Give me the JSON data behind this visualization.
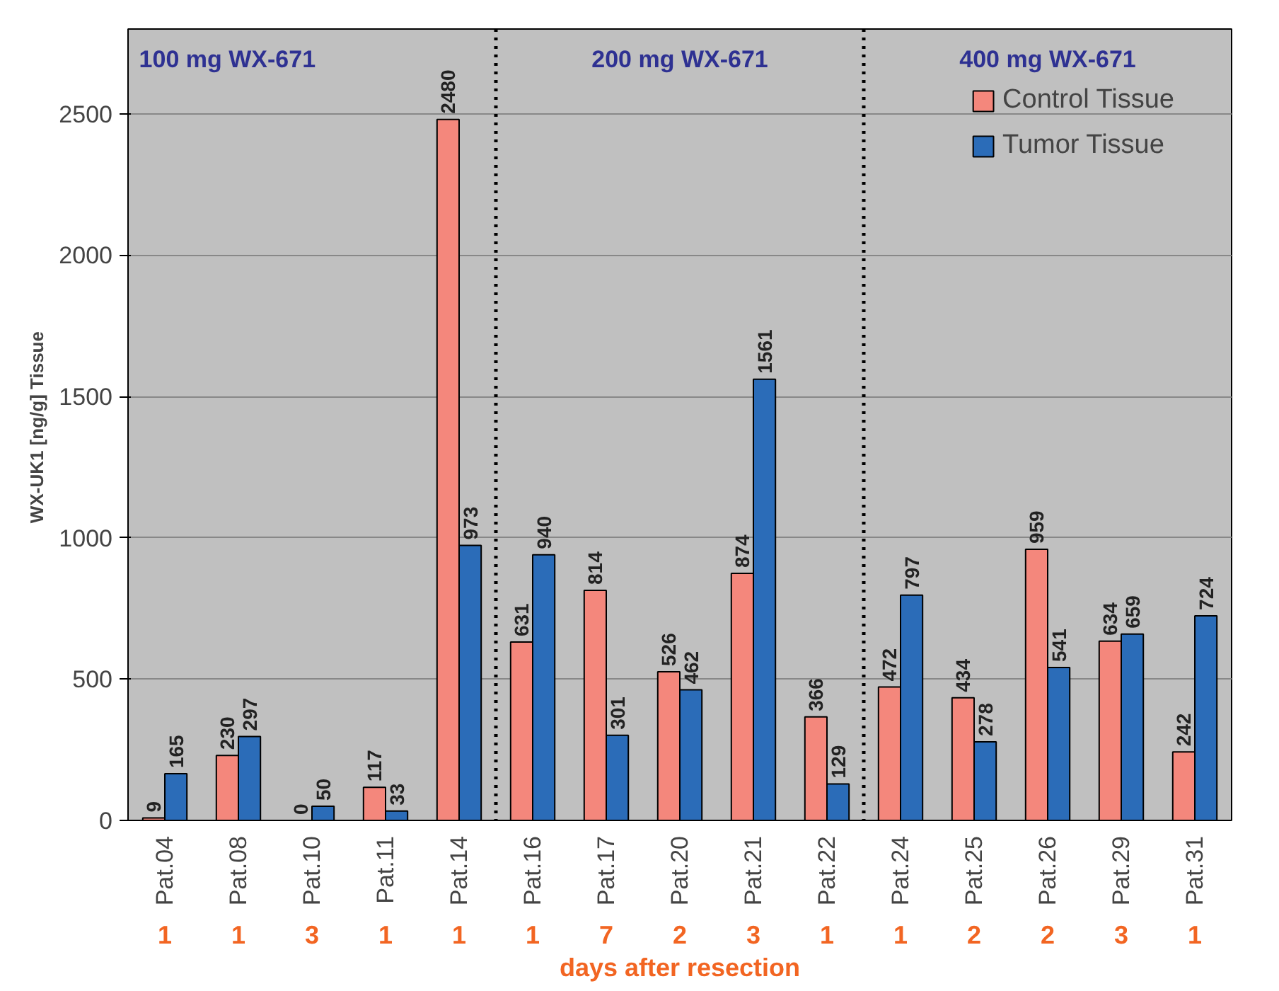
{
  "chart_data": {
    "type": "bar",
    "categories": [
      "Pat.04",
      "Pat.08",
      "Pat.10",
      "Pat.11",
      "Pat.14",
      "Pat.16",
      "Pat.17",
      "Pat.20",
      "Pat.21",
      "Pat.22",
      "Pat.24",
      "Pat.25",
      "Pat.26",
      "Pat.29",
      "Pat.31"
    ],
    "series": [
      {
        "name": "Control Tissue",
        "color": "#f4877c",
        "values": [
          9,
          230,
          0,
          117,
          2480,
          631,
          814,
          526,
          874,
          366,
          472,
          434,
          959,
          634,
          242
        ]
      },
      {
        "name": "Tumor Tissue",
        "color": "#2b6cb8",
        "values": [
          165,
          297,
          50,
          33,
          973,
          940,
          301,
          462,
          1561,
          129,
          797,
          278,
          541,
          659,
          724
        ]
      }
    ],
    "ylabel": "WX-UK1 [ng/g]  Tissue",
    "xlabel": "days after resection",
    "ylim": [
      0,
      2800
    ],
    "yticks": [
      0,
      500,
      1000,
      1500,
      2000,
      2500
    ],
    "grid": "y",
    "legend": "top right",
    "data_labels": true,
    "annotations": [
      "100 mg WX-671",
      "200 mg WX-671",
      "400 mg WX-671",
      "1",
      "1",
      "3",
      "1",
      "1",
      "1",
      "7",
      "2",
      "3",
      "1",
      "1",
      "2",
      "2",
      "3",
      "1"
    ]
  }
}
